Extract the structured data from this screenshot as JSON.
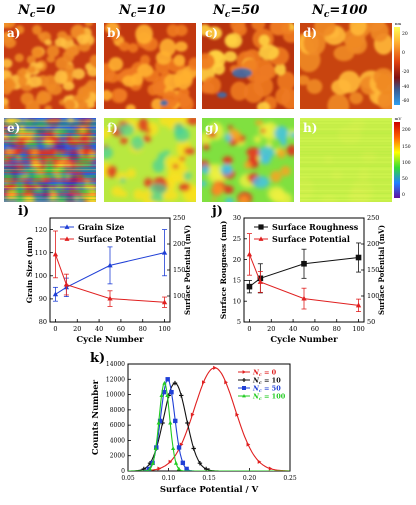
{
  "column_headers": [
    "=0",
    "=10",
    "=50",
    "=100"
  ],
  "column_symbol": "N",
  "column_symbol_sub": "c",
  "panel_letters": {
    "top": [
      "a)",
      "b)",
      "c)",
      "d)"
    ],
    "middle": [
      "e)",
      "f)",
      "g)",
      "h)"
    ]
  },
  "colorbar_top": {
    "unit": "nm",
    "ticks": [
      "20",
      "0",
      "-20",
      "-40",
      "-60"
    ]
  },
  "colorbar_mid": {
    "unit": "mV",
    "ticks": [
      "200",
      "150",
      "100",
      "50",
      "0"
    ]
  },
  "chart_data": [
    {
      "id": "i",
      "label": "i)",
      "type": "line",
      "xlabel": "Cycle Number",
      "ylabel": "Grain Size (nm)",
      "ylabel2": "Surface Potential (mV)",
      "xlim": [
        -5,
        105
      ],
      "ylim": [
        80,
        125
      ],
      "ylim2": [
        50,
        250
      ],
      "xticks": [
        0,
        20,
        40,
        60,
        80,
        100
      ],
      "yticks": [
        80,
        90,
        100,
        110,
        120
      ],
      "yticks2": [
        100,
        150,
        200,
        250
      ],
      "series": [
        {
          "name": "Grain Size",
          "color": "#1f3fd6",
          "marker": "triangle-up",
          "axis": "left",
          "x": [
            0,
            10,
            50,
            100
          ],
          "y": [
            92,
            95,
            104.5,
            110
          ],
          "err": [
            3,
            4,
            8,
            10
          ]
        },
        {
          "name": "Surface Potential",
          "color": "#e02020",
          "marker": "triangle-up",
          "axis": "right",
          "x": [
            0,
            10,
            50,
            100
          ],
          "y": [
            180,
            122,
            95,
            88
          ],
          "err": [
            45,
            20,
            15,
            10
          ]
        }
      ]
    },
    {
      "id": "j",
      "label": "j)",
      "type": "line",
      "xlabel": "Cycle Number",
      "ylabel": "Surface Rougness (nm)",
      "ylabel2": "Surface Potential (mV)",
      "xlim": [
        -5,
        105
      ],
      "ylim": [
        5,
        30
      ],
      "ylim2": [
        50,
        250
      ],
      "xticks": [
        0,
        20,
        40,
        60,
        80,
        100
      ],
      "yticks": [
        5,
        10,
        15,
        20,
        25,
        30
      ],
      "yticks2": [
        50,
        100,
        150,
        200,
        250
      ],
      "series": [
        {
          "name": "Surface Roughness",
          "color": "#111111",
          "marker": "square",
          "axis": "left",
          "x": [
            0,
            10,
            50,
            100
          ],
          "y": [
            13.5,
            15.5,
            19,
            20.5
          ],
          "err": [
            1.5,
            3.5,
            3.5,
            3.5
          ]
        },
        {
          "name": "Surface Potential",
          "color": "#e02020",
          "marker": "triangle-up",
          "axis": "right",
          "x": [
            0,
            10,
            50,
            100
          ],
          "y": [
            180,
            127,
            95,
            82
          ],
          "err": [
            40,
            20,
            20,
            12
          ]
        }
      ]
    },
    {
      "id": "k",
      "label": "k)",
      "type": "line",
      "xlabel": "Surface Potential / V",
      "ylabel": "Counts Number",
      "xlim": [
        0.05,
        0.25
      ],
      "ylim": [
        0,
        14000
      ],
      "xticks": [
        0.05,
        0.1,
        0.15,
        0.2,
        0.25
      ],
      "xticklabels": [
        "0.05",
        "0.10",
        "0.15",
        "0.20",
        "0.25"
      ],
      "yticks": [
        0,
        2000,
        4000,
        6000,
        8000,
        10000,
        12000,
        14000
      ],
      "legend_position": "top-right",
      "series": [
        {
          "name": "0",
          "color": "#e02020",
          "marker": "triangle-right",
          "center": 0.157,
          "sigma": 0.025,
          "peak": 13500
        },
        {
          "name": "10",
          "color": "#111111",
          "marker": "cross",
          "center": 0.108,
          "sigma": 0.014,
          "peak": 11500
        },
        {
          "name": "50",
          "color": "#1f3fd6",
          "marker": "square",
          "center": 0.099,
          "sigma": 0.0085,
          "peak": 12000
        },
        {
          "name": "100",
          "color": "#22cc22",
          "marker": "triangle-up",
          "center": 0.095,
          "sigma": 0.0065,
          "peak": 11500
        }
      ],
      "legend_symbol": "N",
      "legend_symbol_sub": "c",
      "legend_eq": "="
    }
  ]
}
